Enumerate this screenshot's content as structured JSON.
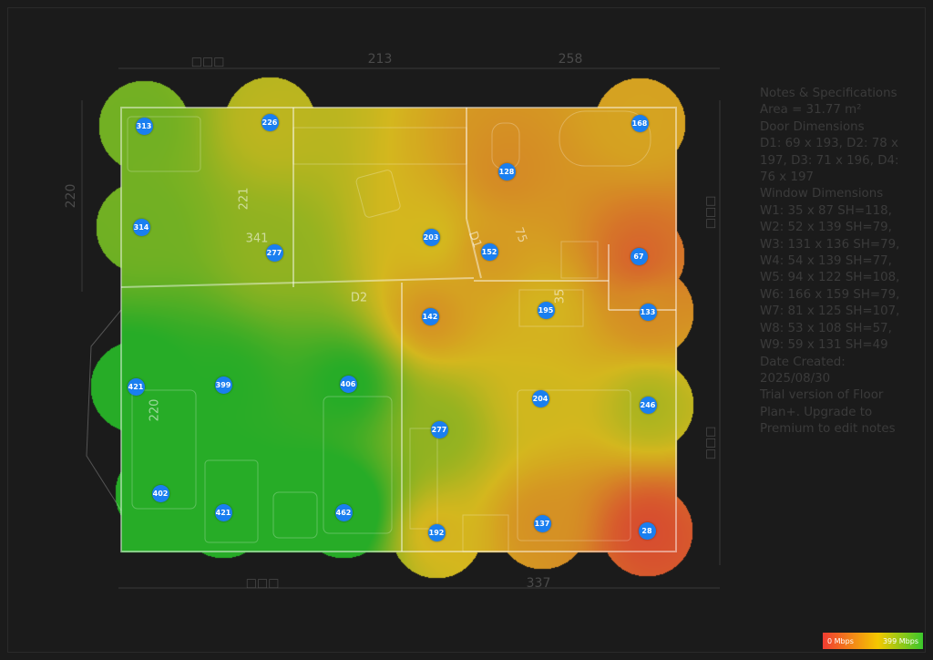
{
  "notes": {
    "lines": [
      "Notes & Specifications",
      "Area = 31.77 m²",
      "Door Dimensions",
      "D1: 69 x 193, D2: 78 x 197, D3: 71 x 196, D4: 76 x 197",
      "Window Dimensions",
      "W1: 35 x 87 SH=118,",
      "W2: 52 x 139 SH=79,",
      "W3: 131 x 136 SH=79,",
      "W4: 54 x 139 SH=77,",
      "W5: 94 x 122 SH=108,",
      "W6: 166 x 159 SH=79,",
      "W7: 81 x 125 SH=107,",
      "W8: 53 x 108 SH=57,",
      "W9: 59 x 131 SH=49",
      "Date Created:",
      "2025/08/30",
      "Trial version of Floor Plan+. Upgrade to Premium to edit notes"
    ]
  },
  "dimensions": {
    "top_left": "□□□",
    "top_mid": "213",
    "top_right": "258",
    "left": "220",
    "left_lower": "220",
    "inner_221": "221",
    "inner_341": "341",
    "door_d2": "D2",
    "door_d1": "D1",
    "inner_75": "75",
    "inner_35": "35",
    "bottom_left": "□□□",
    "bottom_right": "337",
    "right_top": "□□□",
    "right_bottom": "□□□"
  },
  "legend": {
    "min_label": "0 Mbps",
    "max_label": "399 Mbps",
    "min_color": "#f03c32",
    "mid_color": "#f5c800",
    "max_color": "#3ac82c"
  },
  "measurements": [
    313,
    226,
    168,
    128,
    314,
    277,
    203,
    152,
    67,
    142,
    195,
    133,
    421,
    399,
    406,
    204,
    246,
    277,
    402,
    421,
    462,
    192,
    137,
    28
  ]
}
